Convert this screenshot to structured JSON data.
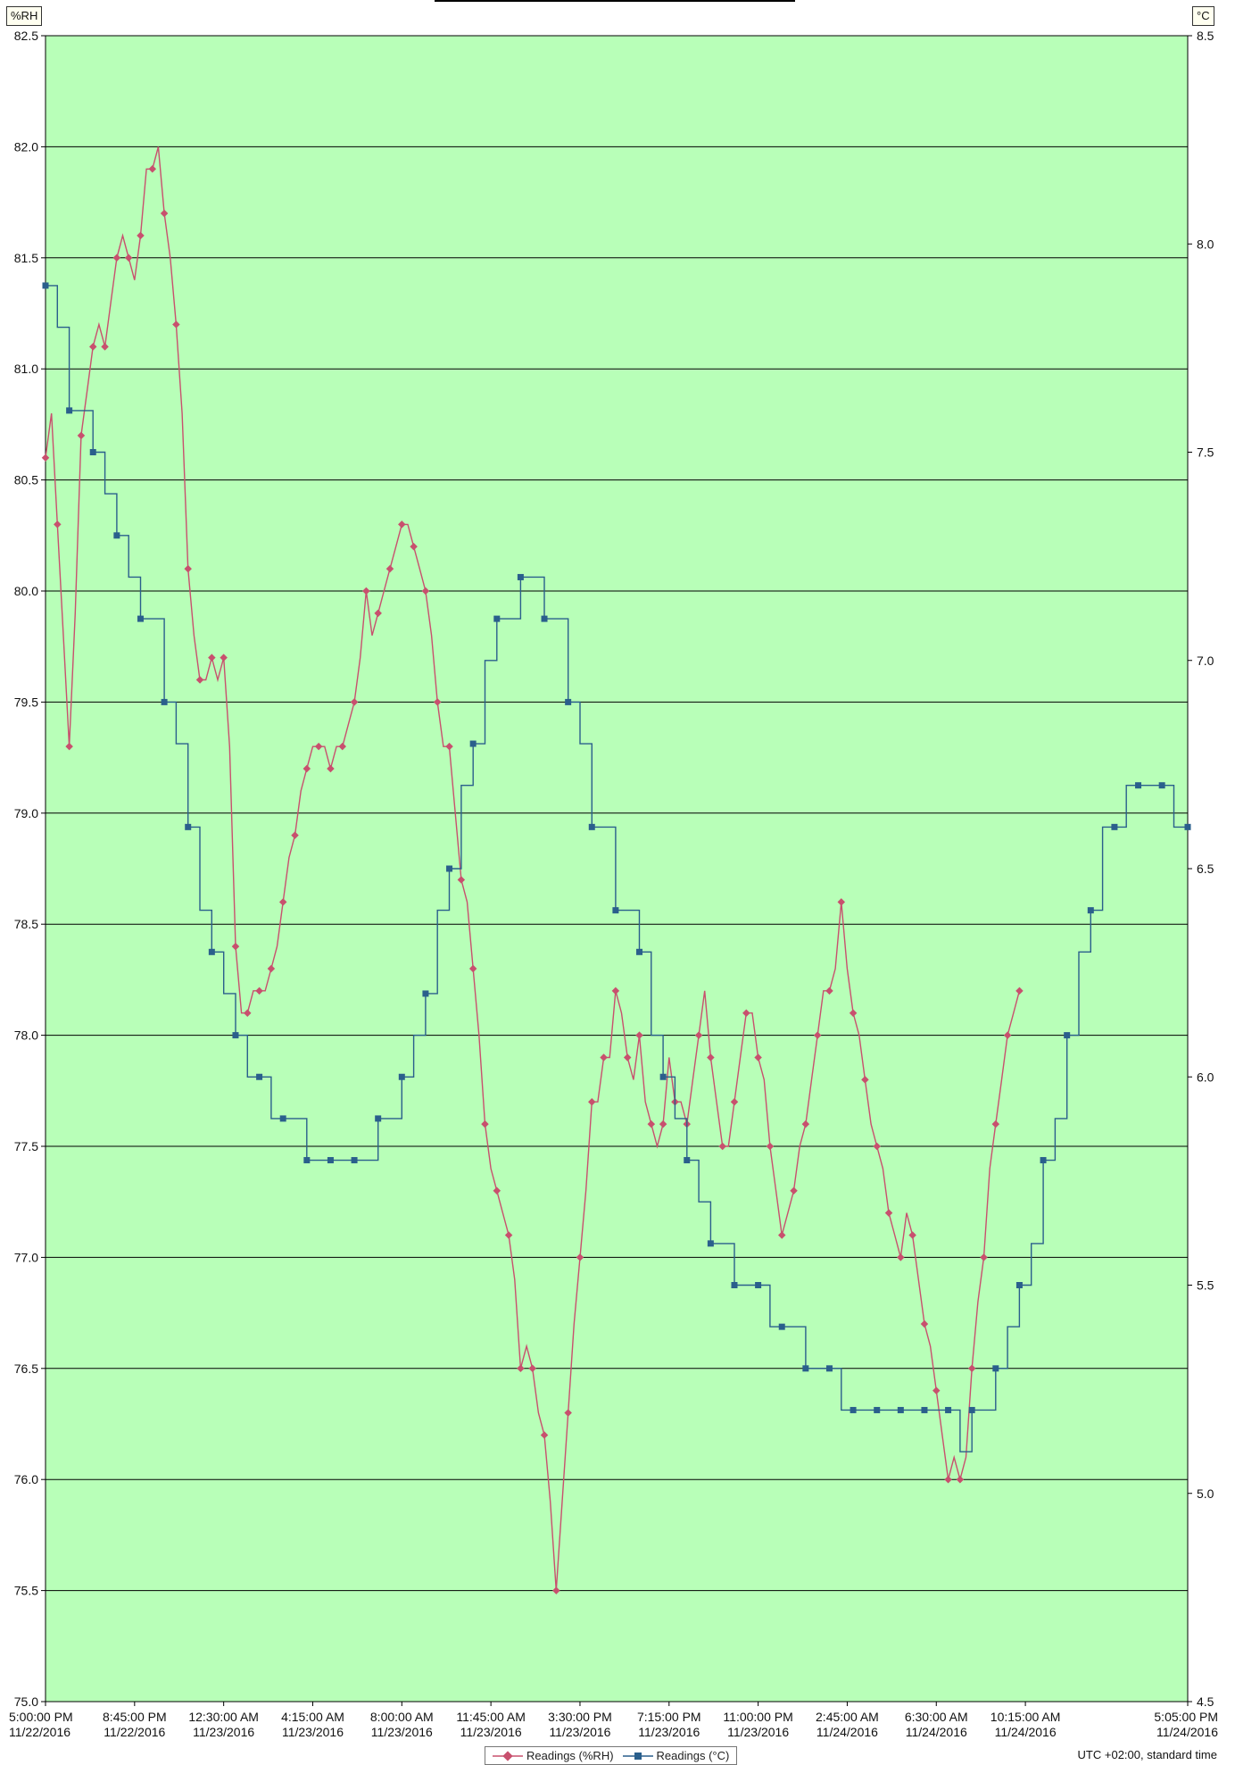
{
  "chart_data": {
    "type": "line",
    "title": "",
    "units": {
      "left": "%RH",
      "right": "°C"
    },
    "colors": {
      "plot_bg": "#b8ffb8",
      "rh": "#c8506e",
      "temp": "#2a5f8c",
      "grid": "#000000"
    },
    "grid": true,
    "y_left": {
      "min": 75.0,
      "max": 82.5,
      "ticks": [
        "75.0",
        "75.5",
        "76.0",
        "76.5",
        "77.0",
        "77.5",
        "78.0",
        "78.5",
        "79.0",
        "79.5",
        "80.0",
        "80.5",
        "81.0",
        "81.5",
        "82.0",
        "82.5"
      ]
    },
    "y_right": {
      "min": 4.5,
      "max": 8.5,
      "ticks": [
        "4.5",
        "5.0",
        "5.5",
        "6.0",
        "6.5",
        "7.0",
        "7.5",
        "8.0",
        "8.5"
      ]
    },
    "x_range_hours": [
      0,
      48.0833
    ],
    "x_ticks": [
      {
        "hour": 0,
        "time": "5:00:00 PM",
        "date": "11/22/2016"
      },
      {
        "hour": 3.75,
        "time": "8:45:00 PM",
        "date": "11/22/2016"
      },
      {
        "hour": 7.5,
        "time": "12:30:00 AM",
        "date": "11/23/2016"
      },
      {
        "hour": 11.25,
        "time": "4:15:00 AM",
        "date": "11/23/2016"
      },
      {
        "hour": 15,
        "time": "8:00:00 AM",
        "date": "11/23/2016"
      },
      {
        "hour": 18.75,
        "time": "11:45:00 AM",
        "date": "11/23/2016"
      },
      {
        "hour": 22.5,
        "time": "3:30:00 PM",
        "date": "11/23/2016"
      },
      {
        "hour": 26.25,
        "time": "7:15:00 PM",
        "date": "11/23/2016"
      },
      {
        "hour": 30,
        "time": "11:00:00 PM",
        "date": "11/23/2016"
      },
      {
        "hour": 33.75,
        "time": "2:45:00 AM",
        "date": "11/24/2016"
      },
      {
        "hour": 37.5,
        "time": "6:30:00 AM",
        "date": "11/24/2016"
      },
      {
        "hour": 41.25,
        "time": "10:15:00 AM",
        "date": "11/24/2016"
      },
      {
        "hour": 48.0833,
        "time": "5:05:00 PM",
        "date": "11/24/2016"
      }
    ],
    "series": [
      {
        "name": "Readings (%RH)",
        "axis": "left",
        "points": [
          [
            0,
            80.6
          ],
          [
            0.25,
            80.8
          ],
          [
            0.5,
            80.3
          ],
          [
            0.75,
            79.8
          ],
          [
            1.0,
            79.3
          ],
          [
            1.25,
            79.9
          ],
          [
            1.5,
            80.7
          ],
          [
            1.75,
            80.9
          ],
          [
            2.0,
            81.1
          ],
          [
            2.25,
            81.2
          ],
          [
            2.5,
            81.1
          ],
          [
            2.75,
            81.3
          ],
          [
            3.0,
            81.5
          ],
          [
            3.25,
            81.6
          ],
          [
            3.5,
            81.5
          ],
          [
            3.75,
            81.4
          ],
          [
            4.0,
            81.6
          ],
          [
            4.25,
            81.9
          ],
          [
            4.5,
            81.9
          ],
          [
            4.75,
            82.0
          ],
          [
            5.0,
            81.7
          ],
          [
            5.25,
            81.5
          ],
          [
            5.5,
            81.2
          ],
          [
            5.75,
            80.8
          ],
          [
            6.0,
            80.1
          ],
          [
            6.25,
            79.8
          ],
          [
            6.5,
            79.6
          ],
          [
            6.75,
            79.6
          ],
          [
            7.0,
            79.7
          ],
          [
            7.25,
            79.6
          ],
          [
            7.5,
            79.7
          ],
          [
            7.75,
            79.3
          ],
          [
            8.0,
            78.4
          ],
          [
            8.25,
            78.1
          ],
          [
            8.5,
            78.1
          ],
          [
            8.75,
            78.2
          ],
          [
            9.0,
            78.2
          ],
          [
            9.25,
            78.2
          ],
          [
            9.5,
            78.3
          ],
          [
            9.75,
            78.4
          ],
          [
            10.0,
            78.6
          ],
          [
            10.25,
            78.8
          ],
          [
            10.5,
            78.9
          ],
          [
            10.75,
            79.1
          ],
          [
            11.0,
            79.2
          ],
          [
            11.25,
            79.3
          ],
          [
            11.5,
            79.3
          ],
          [
            11.75,
            79.3
          ],
          [
            12.0,
            79.2
          ],
          [
            12.25,
            79.3
          ],
          [
            12.5,
            79.3
          ],
          [
            12.75,
            79.4
          ],
          [
            13.0,
            79.5
          ],
          [
            13.25,
            79.7
          ],
          [
            13.5,
            80.0
          ],
          [
            13.75,
            79.8
          ],
          [
            14.0,
            79.9
          ],
          [
            14.25,
            80.0
          ],
          [
            14.5,
            80.1
          ],
          [
            14.75,
            80.2
          ],
          [
            15.0,
            80.3
          ],
          [
            15.25,
            80.3
          ],
          [
            15.5,
            80.2
          ],
          [
            15.75,
            80.1
          ],
          [
            16.0,
            80.0
          ],
          [
            16.25,
            79.8
          ],
          [
            16.5,
            79.5
          ],
          [
            16.75,
            79.3
          ],
          [
            17.0,
            79.3
          ],
          [
            17.25,
            79.0
          ],
          [
            17.5,
            78.7
          ],
          [
            17.75,
            78.6
          ],
          [
            18.0,
            78.3
          ],
          [
            18.25,
            78.0
          ],
          [
            18.5,
            77.6
          ],
          [
            18.75,
            77.4
          ],
          [
            19.0,
            77.3
          ],
          [
            19.25,
            77.2
          ],
          [
            19.5,
            77.1
          ],
          [
            19.75,
            76.9
          ],
          [
            20.0,
            76.5
          ],
          [
            20.25,
            76.6
          ],
          [
            20.5,
            76.5
          ],
          [
            20.75,
            76.3
          ],
          [
            21.0,
            76.2
          ],
          [
            21.25,
            75.9
          ],
          [
            21.5,
            75.5
          ],
          [
            21.75,
            75.9
          ],
          [
            22.0,
            76.3
          ],
          [
            22.25,
            76.7
          ],
          [
            22.5,
            77.0
          ],
          [
            22.75,
            77.3
          ],
          [
            23.0,
            77.7
          ],
          [
            23.25,
            77.7
          ],
          [
            23.5,
            77.9
          ],
          [
            23.75,
            77.9
          ],
          [
            24.0,
            78.2
          ],
          [
            24.25,
            78.1
          ],
          [
            24.5,
            77.9
          ],
          [
            24.75,
            77.8
          ],
          [
            25.0,
            78.0
          ],
          [
            25.25,
            77.7
          ],
          [
            25.5,
            77.6
          ],
          [
            25.75,
            77.5
          ],
          [
            26.0,
            77.6
          ],
          [
            26.25,
            77.9
          ],
          [
            26.5,
            77.7
          ],
          [
            26.75,
            77.7
          ],
          [
            27.0,
            77.6
          ],
          [
            27.25,
            77.8
          ],
          [
            27.5,
            78.0
          ],
          [
            27.75,
            78.2
          ],
          [
            28.0,
            77.9
          ],
          [
            28.25,
            77.7
          ],
          [
            28.5,
            77.5
          ],
          [
            28.75,
            77.5
          ],
          [
            29.0,
            77.7
          ],
          [
            29.25,
            77.9
          ],
          [
            29.5,
            78.1
          ],
          [
            29.75,
            78.1
          ],
          [
            30.0,
            77.9
          ],
          [
            30.25,
            77.8
          ],
          [
            30.5,
            77.5
          ],
          [
            30.75,
            77.3
          ],
          [
            31.0,
            77.1
          ],
          [
            31.25,
            77.2
          ],
          [
            31.5,
            77.3
          ],
          [
            31.75,
            77.5
          ],
          [
            32.0,
            77.6
          ],
          [
            32.25,
            77.8
          ],
          [
            32.5,
            78.0
          ],
          [
            32.75,
            78.2
          ],
          [
            33.0,
            78.2
          ],
          [
            33.25,
            78.3
          ],
          [
            33.5,
            78.6
          ],
          [
            33.75,
            78.3
          ],
          [
            34.0,
            78.1
          ],
          [
            34.25,
            78.0
          ],
          [
            34.5,
            77.8
          ],
          [
            34.75,
            77.6
          ],
          [
            35.0,
            77.5
          ],
          [
            35.25,
            77.4
          ],
          [
            35.5,
            77.2
          ],
          [
            35.75,
            77.1
          ],
          [
            36.0,
            77.0
          ],
          [
            36.25,
            77.2
          ],
          [
            36.5,
            77.1
          ],
          [
            36.75,
            76.9
          ],
          [
            37.0,
            76.7
          ],
          [
            37.25,
            76.6
          ],
          [
            37.5,
            76.4
          ],
          [
            37.75,
            76.2
          ],
          [
            38.0,
            76.0
          ],
          [
            38.25,
            76.1
          ],
          [
            38.5,
            76.0
          ],
          [
            38.75,
            76.1
          ],
          [
            39.0,
            76.5
          ],
          [
            39.25,
            76.8
          ],
          [
            39.5,
            77.0
          ],
          [
            39.75,
            77.4
          ],
          [
            40.0,
            77.6
          ],
          [
            40.25,
            77.8
          ],
          [
            40.5,
            78.0
          ],
          [
            40.75,
            78.1
          ],
          [
            41.0,
            78.2
          ]
        ]
      },
      {
        "name": "Readings (°C)",
        "axis": "right",
        "points": [
          [
            0,
            7.9
          ],
          [
            0.5,
            7.8
          ],
          [
            1.0,
            7.6
          ],
          [
            1.5,
            7.6
          ],
          [
            2.0,
            7.5
          ],
          [
            2.5,
            7.4
          ],
          [
            3.0,
            7.3
          ],
          [
            3.5,
            7.2
          ],
          [
            4.0,
            7.1
          ],
          [
            4.5,
            7.1
          ],
          [
            5.0,
            6.9
          ],
          [
            5.5,
            6.8
          ],
          [
            6.0,
            6.6
          ],
          [
            6.5,
            6.4
          ],
          [
            7.0,
            6.3
          ],
          [
            7.5,
            6.2
          ],
          [
            8.0,
            6.1
          ],
          [
            8.5,
            6.0
          ],
          [
            9.0,
            6.0
          ],
          [
            9.5,
            5.9
          ],
          [
            10.0,
            5.9
          ],
          [
            10.5,
            5.9
          ],
          [
            11.0,
            5.8
          ],
          [
            11.5,
            5.8
          ],
          [
            12.0,
            5.8
          ],
          [
            12.5,
            5.8
          ],
          [
            13.0,
            5.8
          ],
          [
            13.5,
            5.8
          ],
          [
            14.0,
            5.9
          ],
          [
            14.5,
            5.9
          ],
          [
            15.0,
            6.0
          ],
          [
            15.5,
            6.1
          ],
          [
            16.0,
            6.2
          ],
          [
            16.5,
            6.4
          ],
          [
            17.0,
            6.5
          ],
          [
            17.5,
            6.7
          ],
          [
            18.0,
            6.8
          ],
          [
            18.5,
            7.0
          ],
          [
            19.0,
            7.1
          ],
          [
            19.5,
            7.1
          ],
          [
            20.0,
            7.2
          ],
          [
            20.5,
            7.2
          ],
          [
            21.0,
            7.1
          ],
          [
            21.5,
            7.1
          ],
          [
            22.0,
            6.9
          ],
          [
            22.5,
            6.8
          ],
          [
            23.0,
            6.6
          ],
          [
            23.5,
            6.6
          ],
          [
            24.0,
            6.4
          ],
          [
            24.5,
            6.4
          ],
          [
            25.0,
            6.3
          ],
          [
            25.5,
            6.1
          ],
          [
            26.0,
            6.0
          ],
          [
            26.5,
            5.9
          ],
          [
            27.0,
            5.8
          ],
          [
            27.5,
            5.7
          ],
          [
            28.0,
            5.6
          ],
          [
            28.5,
            5.6
          ],
          [
            29.0,
            5.5
          ],
          [
            29.5,
            5.5
          ],
          [
            30.0,
            5.5
          ],
          [
            30.5,
            5.4
          ],
          [
            31.0,
            5.4
          ],
          [
            31.5,
            5.4
          ],
          [
            32.0,
            5.3
          ],
          [
            32.5,
            5.3
          ],
          [
            33.0,
            5.3
          ],
          [
            33.5,
            5.2
          ],
          [
            34.0,
            5.2
          ],
          [
            34.5,
            5.2
          ],
          [
            35.0,
            5.2
          ],
          [
            35.5,
            5.2
          ],
          [
            36.0,
            5.2
          ],
          [
            36.5,
            5.2
          ],
          [
            37.0,
            5.2
          ],
          [
            37.5,
            5.2
          ],
          [
            38.0,
            5.2
          ],
          [
            38.5,
            5.1
          ],
          [
            39.0,
            5.2
          ],
          [
            39.5,
            5.2
          ],
          [
            40.0,
            5.3
          ],
          [
            40.5,
            5.4
          ],
          [
            41.0,
            5.5
          ],
          [
            41.5,
            5.6
          ],
          [
            42.0,
            5.8
          ],
          [
            42.5,
            5.9
          ],
          [
            43.0,
            6.1
          ],
          [
            43.5,
            6.3
          ],
          [
            44.0,
            6.4
          ],
          [
            44.5,
            6.6
          ],
          [
            45.0,
            6.6
          ],
          [
            45.5,
            6.7
          ],
          [
            46.0,
            6.7
          ],
          [
            46.5,
            6.7
          ],
          [
            47.0,
            6.7
          ],
          [
            47.5,
            6.6
          ],
          [
            48.0833,
            6.6
          ]
        ]
      }
    ]
  },
  "units_label": {
    "left": "%RH",
    "right": "°C"
  },
  "legend": {
    "rh": "Readings (%RH)",
    "temp": "Readings (°C)"
  },
  "timezone": "UTC +02:00, standard time"
}
